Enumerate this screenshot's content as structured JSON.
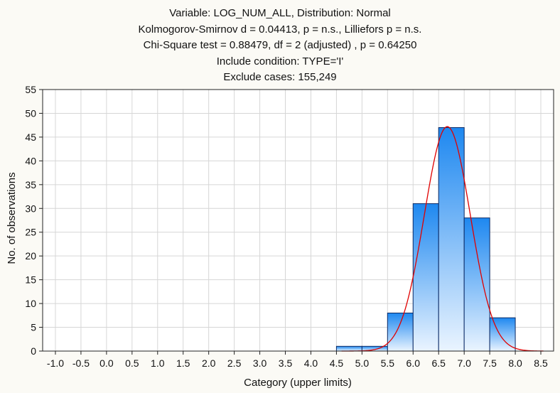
{
  "titles": [
    "Variable: LOG_NUM_ALL, Distribution: Normal",
    "Kolmogorov-Smirnov d = 0.04413, p = n.s., Lilliefors p = n.s.",
    "Chi-Square test = 0.88479, df = 2 (adjusted) , p = 0.64250",
    "Include condition: TYPE='I'",
    "Exclude cases: 155,249"
  ],
  "chart_data": {
    "type": "bar",
    "title": "Variable: LOG_NUM_ALL, Distribution: Normal",
    "xlabel": "Category (upper limits)",
    "ylabel": "No. of observations",
    "xlim": [
      -1.25,
      8.75
    ],
    "ylim": [
      0,
      55
    ],
    "x_ticks": [
      "-1.0",
      "-0.5",
      "0.0",
      "0.5",
      "1.0",
      "1.5",
      "2.0",
      "2.5",
      "3.0",
      "3.5",
      "4.0",
      "4.5",
      "5.0",
      "5.5",
      "6.0",
      "6.5",
      "7.0",
      "7.5",
      "8.0",
      "8.5"
    ],
    "y_ticks": [
      0,
      5,
      10,
      15,
      20,
      25,
      30,
      35,
      40,
      45,
      50,
      55
    ],
    "bins": [
      {
        "from": 4.5,
        "to": 5.0,
        "value": 1
      },
      {
        "from": 5.0,
        "to": 5.5,
        "value": 1
      },
      {
        "from": 5.5,
        "to": 6.0,
        "value": 8
      },
      {
        "from": 6.0,
        "to": 6.5,
        "value": 31
      },
      {
        "from": 6.5,
        "to": 7.0,
        "value": 47
      },
      {
        "from": 7.0,
        "to": 7.5,
        "value": 28
      },
      {
        "from": 7.5,
        "to": 8.0,
        "value": 7
      }
    ],
    "normal_fit": {
      "mean": 6.67,
      "sd": 0.45,
      "peak": 47.2
    },
    "grid": true,
    "colors": {
      "bar_top": "#1e88f0",
      "bar_bottom": "#eaf4ff",
      "bar_stroke": "#0b2a66",
      "curve": "#e00000",
      "grid": "#d6d6d6",
      "plot_bg": "#ffffff"
    }
  }
}
